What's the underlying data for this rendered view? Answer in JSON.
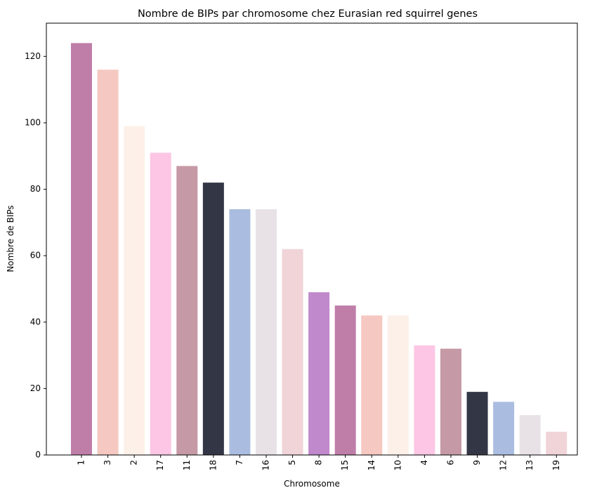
{
  "chart_data": {
    "type": "bar",
    "title": "Nombre de BIPs par chromosome chez Eurasian red squirrel genes",
    "xlabel": "Chromosome",
    "ylabel": "Nombre de BIPs",
    "ylim": [
      0,
      130
    ],
    "yticks": [
      0,
      20,
      40,
      60,
      80,
      100,
      120
    ],
    "categories": [
      "1",
      "3",
      "2",
      "17",
      "11",
      "18",
      "7",
      "16",
      "5",
      "8",
      "15",
      "14",
      "10",
      "4",
      "6",
      "9",
      "12",
      "13",
      "19"
    ],
    "values": [
      124,
      116,
      99,
      91,
      87,
      82,
      74,
      74,
      62,
      49,
      45,
      42,
      42,
      33,
      32,
      19,
      16,
      12,
      7
    ],
    "colors": [
      "#bf7ea8",
      "#f5c8c1",
      "#fdf0e8",
      "#fcc6e4",
      "#c599a5",
      "#333745",
      "#aabde0",
      "#e8e2e6",
      "#f0d4d8",
      "#c089cb",
      "#bf7ea8",
      "#f5c8c1",
      "#fdf0e8",
      "#fcc6e4",
      "#c599a5",
      "#333745",
      "#aabde0",
      "#e8e2e6",
      "#f0d4d8"
    ],
    "x_tick_rotation": "vertical",
    "grid": false,
    "legend": "none"
  }
}
